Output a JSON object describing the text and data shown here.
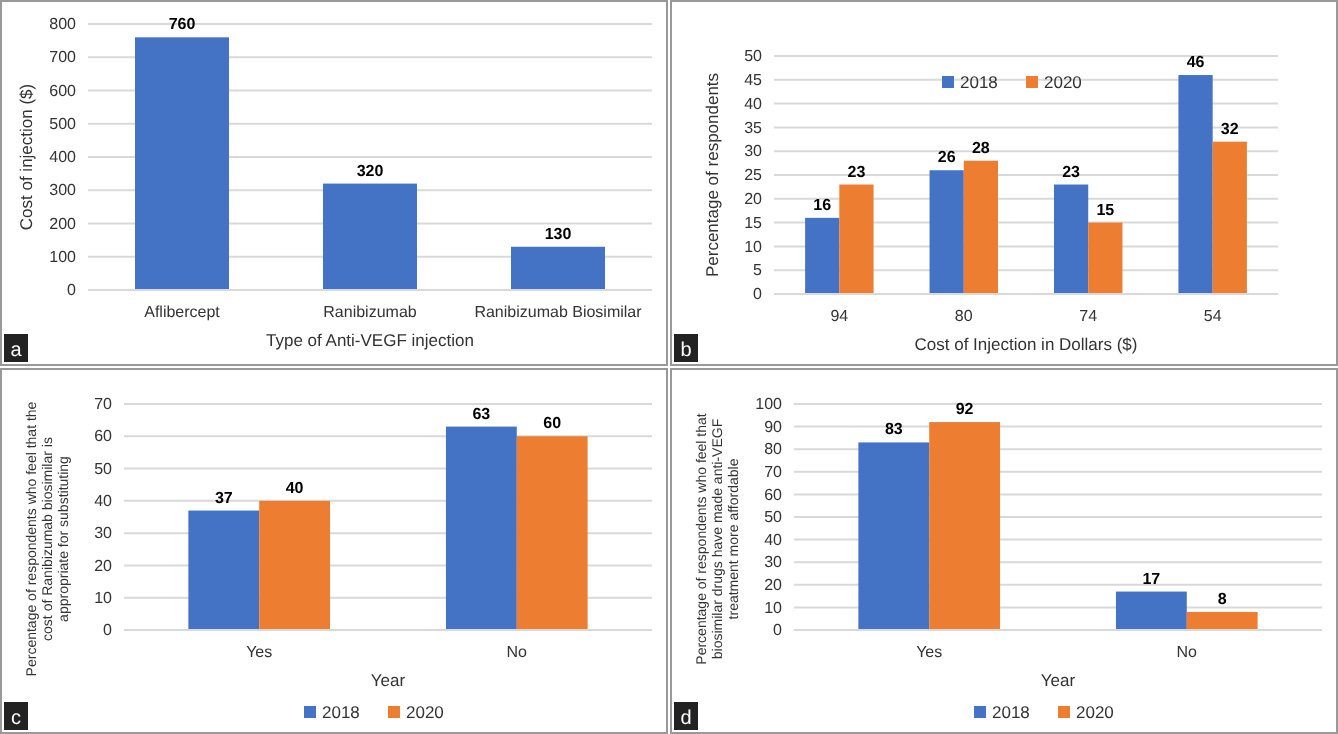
{
  "chart_data": [
    {
      "type": "bar",
      "xlabel": "Type of Anti-VEGF injection",
      "ylabel": "Cost of injection ($)",
      "categories": [
        "Aflibercept",
        "Ranibizumab",
        "Ranibizumab Biosimilar"
      ],
      "values": [
        760,
        320,
        130
      ],
      "color": "#4472c4",
      "ylim": [
        0,
        800
      ],
      "yticks": [
        0,
        100,
        200,
        300,
        400,
        500,
        600,
        700,
        800
      ],
      "grid": "y",
      "data_labels": true,
      "annotations": [
        "a"
      ]
    },
    {
      "type": "bar",
      "xlabel": "Cost of Injection in Dollars ($)",
      "ylabel": "Percentage of respondents",
      "categories": [
        "94",
        "80",
        "74",
        "54"
      ],
      "series": [
        {
          "name": "2018",
          "color": "#4472c4",
          "values": [
            16,
            26,
            23,
            46
          ]
        },
        {
          "name": "2020",
          "color": "#ed7d31",
          "values": [
            23,
            28,
            15,
            32
          ]
        }
      ],
      "ylim": [
        0,
        50
      ],
      "yticks": [
        0,
        5,
        10,
        15,
        20,
        25,
        30,
        35,
        40,
        45,
        50
      ],
      "grid": "y",
      "legend": "top",
      "data_labels": true,
      "annotations": [
        "b"
      ]
    },
    {
      "type": "bar",
      "xlabel": "Year",
      "ylabel": "Percentage of respondents who feel that the cost of Ranibizumab biosimilar is appropriate for substituting",
      "categories": [
        "Yes",
        "No"
      ],
      "series": [
        {
          "name": "2018",
          "color": "#4472c4",
          "values": [
            37,
            63
          ]
        },
        {
          "name": "2020",
          "color": "#ed7d31",
          "values": [
            40,
            60
          ]
        }
      ],
      "ylim": [
        0,
        70
      ],
      "yticks": [
        0,
        10,
        20,
        30,
        40,
        50,
        60,
        70
      ],
      "grid": "y",
      "legend": "bottom",
      "data_labels": true,
      "annotations": [
        "c"
      ]
    },
    {
      "type": "bar",
      "xlabel": "Year",
      "ylabel": "Percentage of respondents who feel that biosimilar drugs have made anti-VEGF treatment more affordable",
      "categories": [
        "Yes",
        "No"
      ],
      "series": [
        {
          "name": "2018",
          "color": "#4472c4",
          "values": [
            83,
            17
          ]
        },
        {
          "name": "2020",
          "color": "#ed7d31",
          "values": [
            92,
            8
          ]
        }
      ],
      "ylim": [
        0,
        100
      ],
      "yticks": [
        0,
        10,
        20,
        30,
        40,
        50,
        60,
        70,
        80,
        90,
        100
      ],
      "grid": "y",
      "legend": "bottom",
      "data_labels": true,
      "annotations": [
        "d"
      ]
    }
  ]
}
